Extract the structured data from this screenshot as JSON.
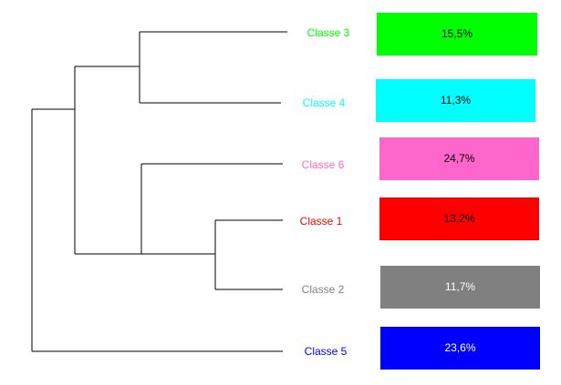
{
  "classes": [
    {
      "label": "Classe 3",
      "share": "15,5%",
      "color": "#00ff00",
      "text_color": "#000000"
    },
    {
      "label": "Classe 4",
      "share": "11,3%",
      "color": "#00ffff",
      "text_color": "#000000"
    },
    {
      "label": "Classe 6",
      "share": "24,7%",
      "color": "#ff66cc",
      "text_color": "#000000"
    },
    {
      "label": "Classe 1",
      "share": "13,2%",
      "color": "#ff0000",
      "text_color": "#000000"
    },
    {
      "label": "Classe 2",
      "share": "11,7%",
      "color": "#808080",
      "text_color": "#ffffff"
    },
    {
      "label": "Classe 5",
      "share": "23,6%",
      "color": "#0000ff",
      "text_color": "#ffffff"
    }
  ]
}
